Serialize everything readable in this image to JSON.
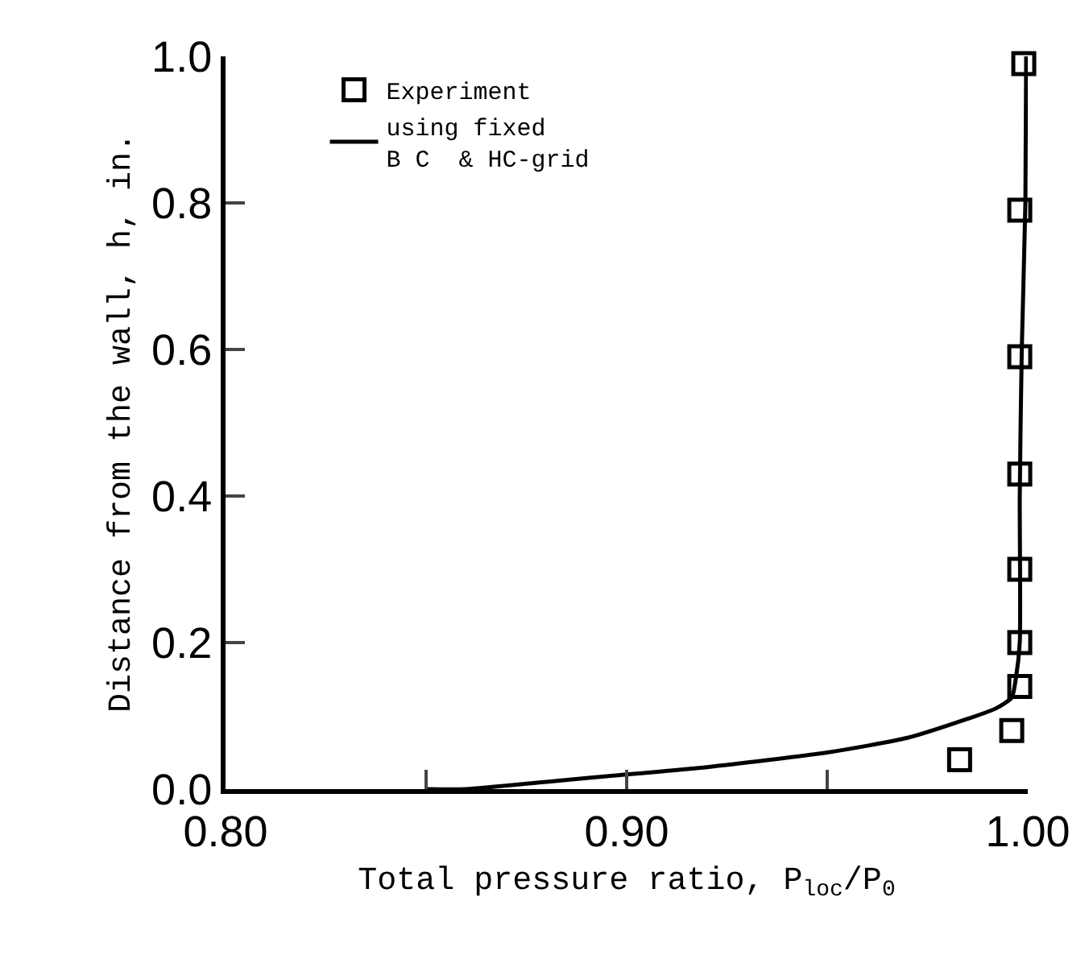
{
  "chart_data": {
    "type": "scatter",
    "xlabel": "Total pressure ratio, P$_{loc}$/P$_{0}$",
    "ylabel": "Distance from the wall, h, in.",
    "xlim": [
      0.8,
      1.0
    ],
    "xticks": [
      {
        "value": 0.8,
        "label": "0.80"
      },
      {
        "value": 0.85,
        "label": null
      },
      {
        "value": 0.9,
        "label": "0.90"
      },
      {
        "value": 0.95,
        "label": null
      },
      {
        "value": 1.0,
        "label": "1.00"
      }
    ],
    "ylim": [
      0,
      1.0
    ],
    "yticks": [
      {
        "value": 0,
        "label": "0.0"
      },
      {
        "value": 0.2,
        "label": "0.2"
      },
      {
        "value": 0.4,
        "label": "0.4"
      },
      {
        "value": 0.6,
        "label": "0.6"
      },
      {
        "value": 0.8,
        "label": "0.8"
      },
      {
        "value": 1.0,
        "label": "1.0"
      }
    ],
    "grid": false,
    "legend": "top left",
    "series": [
      {
        "name": "Experiment",
        "type": "scatter",
        "marker": "square",
        "color": "#000000",
        "x": [
          0.999,
          0.998,
          0.998,
          0.998,
          0.998,
          0.998,
          0.998,
          0.996,
          0.983
        ],
        "values": [
          0.99,
          0.79,
          0.59,
          0.43,
          0.3,
          0.2,
          0.14,
          0.08,
          0.04
        ]
      },
      {
        "name": "using fixed\nB C  & HC-grid",
        "type": "line",
        "marker": "none",
        "line_style": "solid",
        "color": "#000000",
        "x": [
          0.85,
          0.86,
          0.88,
          0.9,
          0.92,
          0.95,
          0.97,
          0.985,
          0.992,
          0.996,
          0.997,
          0.998,
          0.998,
          0.9985,
          0.9994,
          0.9996
        ],
        "values": [
          0,
          0,
          0.01,
          0.02,
          0.03,
          0.05,
          0.07,
          0.096,
          0.11,
          0.125,
          0.15,
          0.2,
          0.4,
          0.6,
          0.8,
          1.0
        ]
      }
    ]
  }
}
